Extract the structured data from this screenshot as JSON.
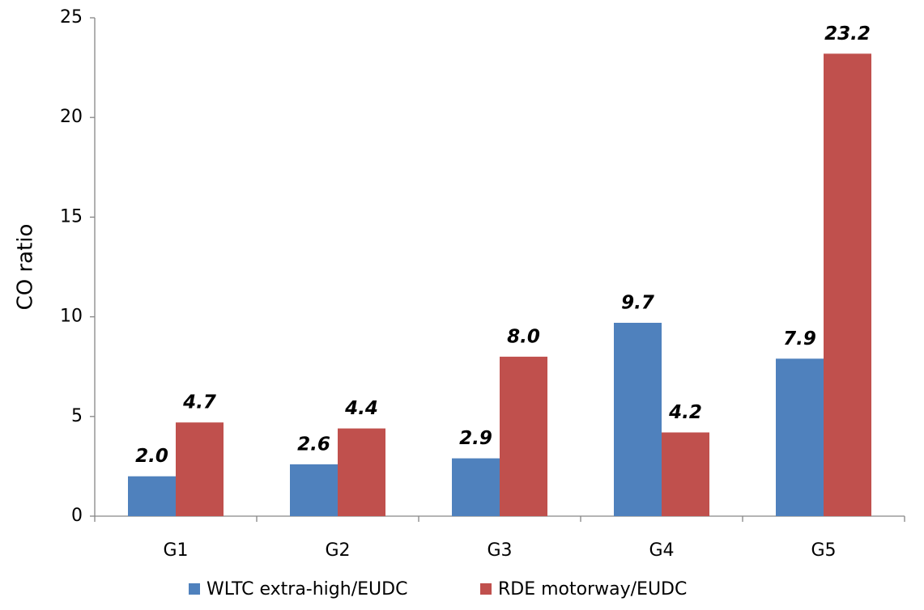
{
  "chart_data": {
    "type": "bar",
    "y_label": "CO ratio",
    "categories": [
      "G1",
      "G2",
      "G3",
      "G4",
      "G5"
    ],
    "series": [
      {
        "name": "WLTC extra-high/EUDC",
        "color": "#4f81bd",
        "values": [
          2.0,
          2.6,
          2.9,
          9.7,
          7.9
        ],
        "value_labels": [
          "2.0",
          "2.6",
          "2.9",
          "9.7",
          "7.9"
        ]
      },
      {
        "name": "RDE motorway/EUDC",
        "color": "#c0504d",
        "values": [
          4.7,
          4.4,
          8.0,
          4.2,
          23.2
        ],
        "value_labels": [
          "4.7",
          "4.4",
          "8.0",
          "4.2",
          "23.2"
        ]
      }
    ],
    "ylim": [
      0,
      25
    ],
    "yticks": [
      0,
      5,
      10,
      15,
      20,
      25
    ],
    "grid": false,
    "legend": "bottom"
  }
}
